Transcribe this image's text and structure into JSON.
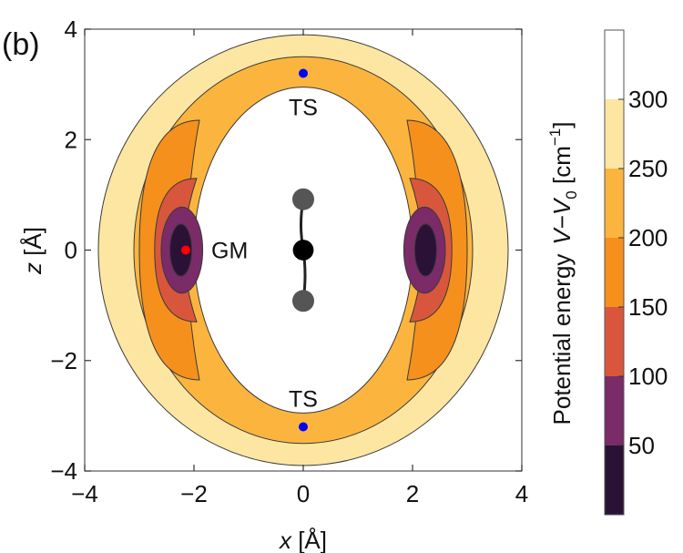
{
  "chart_data": {
    "type": "heatmap",
    "panel_label": "(b)",
    "xlabel": {
      "var": "x",
      "unit": " [Å]"
    },
    "ylabel": {
      "var": "z",
      "unit": " [Å]"
    },
    "xlim": [
      -4,
      4
    ],
    "ylim": [
      -4,
      4
    ],
    "x_ticks": [
      {
        "v": -4,
        "label": "−4"
      },
      {
        "v": -2,
        "label": "−2"
      },
      {
        "v": 0,
        "label": "0"
      },
      {
        "v": 2,
        "label": "2"
      },
      {
        "v": 4,
        "label": "4"
      }
    ],
    "y_ticks": [
      {
        "v": 4,
        "label": "4"
      },
      {
        "v": 2,
        "label": "2"
      },
      {
        "v": 0,
        "label": "0"
      },
      {
        "v": -2,
        "label": "−2"
      },
      {
        "v": -4,
        "label": "−4"
      }
    ],
    "colorbar": {
      "title": "Potential energy",
      "quantity": {
        "v": "V",
        "dash": "−",
        "v0": "V",
        "sub": "0",
        "unit": " [cm",
        "exp": "−1",
        "close": "]"
      },
      "range": [
        0,
        350
      ],
      "bands": [
        {
          "from": 0,
          "to": 50,
          "color": "#2a1237"
        },
        {
          "from": 50,
          "to": 100,
          "color": "#7a2b68"
        },
        {
          "from": 100,
          "to": 150,
          "color": "#d8573c"
        },
        {
          "from": 150,
          "to": 200,
          "color": "#f5901c"
        },
        {
          "from": 200,
          "to": 250,
          "color": "#fbb53e"
        },
        {
          "from": 250,
          "to": 300,
          "color": "#fde6a2"
        },
        {
          "from": 300,
          "to": 350,
          "color": "#ffffff"
        }
      ],
      "tick_labels": [
        {
          "v": 50,
          "label": "50"
        },
        {
          "v": 100,
          "label": "100"
        },
        {
          "v": 150,
          "label": "150"
        },
        {
          "v": 200,
          "label": "200"
        },
        {
          "v": 250,
          "label": "250"
        },
        {
          "v": 300,
          "label": "300"
        }
      ]
    },
    "contour_levels": [
      300,
      250,
      200,
      150,
      100,
      50
    ],
    "points": [
      {
        "label": "GM",
        "x": -2.15,
        "z": 0.0,
        "color": "#ff0000"
      },
      {
        "label": "TS",
        "x": 0.0,
        "z": 3.2,
        "color": "#0000ff"
      },
      {
        "label": "TS",
        "x": 0.0,
        "z": -3.2,
        "color": "#0000ff"
      }
    ],
    "molecule": {
      "atoms": [
        {
          "x": 0.0,
          "z": 0.92,
          "r": 0.2,
          "color": "#555555"
        },
        {
          "x": 0.0,
          "z": 0.0,
          "r": 0.19,
          "color": "#000000"
        },
        {
          "x": 0.0,
          "z": -0.92,
          "r": 0.2,
          "color": "#555555"
        }
      ]
    }
  }
}
